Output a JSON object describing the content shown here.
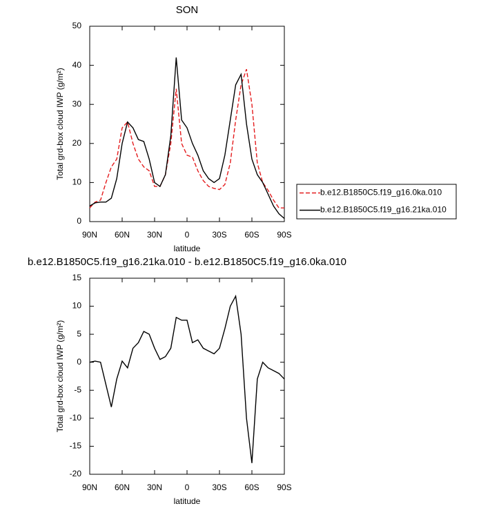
{
  "chart_data": [
    {
      "type": "line",
      "title": "SON",
      "xlabel": "latitude",
      "ylabel": "Total grd-box cloud IWP (g/m²)",
      "x": [
        90,
        85,
        80,
        75,
        70,
        65,
        60,
        55,
        50,
        45,
        40,
        35,
        30,
        25,
        20,
        15,
        10,
        5,
        0,
        -5,
        -10,
        -15,
        -20,
        -25,
        -30,
        -35,
        -40,
        -45,
        -50,
        -55,
        -60,
        -65,
        -70,
        -75,
        -80,
        -85,
        -90
      ],
      "xlim": [
        90,
        -90
      ],
      "xticks": [
        {
          "value": 90,
          "label": "90N"
        },
        {
          "value": 60,
          "label": "60N"
        },
        {
          "value": 30,
          "label": "30N"
        },
        0,
        {
          "value": -30,
          "label": "30S"
        },
        {
          "value": -60,
          "label": "60S"
        },
        {
          "value": -90,
          "label": "90S"
        }
      ],
      "ylim": [
        0,
        50
      ],
      "yticks": [
        0,
        10,
        20,
        30,
        40,
        50
      ],
      "legend": "right",
      "series": [
        {
          "name": "b.e12.B1850C5.f19_g16.0ka.010",
          "color": "#e41a1c",
          "dashed": true,
          "values": [
            3.5,
            5,
            5.5,
            10,
            14,
            16,
            24,
            25.5,
            20,
            16,
            14,
            13,
            9,
            9,
            12,
            20,
            34,
            20,
            17,
            16.5,
            13,
            10.5,
            9,
            8.5,
            8.2,
            9.5,
            15,
            26,
            35,
            39,
            30,
            15,
            10,
            8,
            5.5,
            3.5,
            3.5
          ]
        },
        {
          "name": "b.e12.B1850C5.f19_g16.21ka.010",
          "color": "#000000",
          "dashed": false,
          "values": [
            4,
            4.8,
            5,
            5,
            6,
            11,
            20,
            25.5,
            24,
            21,
            20.5,
            16,
            10,
            9,
            12,
            22,
            42,
            26,
            24,
            20,
            17,
            13,
            11,
            10,
            11,
            17,
            26,
            35,
            37.7,
            25,
            16,
            12,
            10,
            7,
            4,
            2,
            0.8
          ]
        }
      ]
    },
    {
      "type": "line",
      "title": "b.e12.B1850C5.f19_g16.21ka.010 - b.e12.B1850C5.f19_g16.0ka.010",
      "xlabel": "latitude",
      "ylabel": "Total grd-box cloud IWP (g/m²)",
      "x": [
        90,
        85,
        80,
        75,
        70,
        65,
        60,
        55,
        50,
        45,
        40,
        35,
        30,
        25,
        20,
        15,
        10,
        5,
        0,
        -5,
        -10,
        -15,
        -20,
        -25,
        -30,
        -35,
        -40,
        -45,
        -50,
        -55,
        -60,
        -65,
        -70,
        -75,
        -80,
        -85,
        -90
      ],
      "xlim": [
        90,
        -90
      ],
      "xticks": [
        {
          "value": 90,
          "label": "90N"
        },
        {
          "value": 60,
          "label": "60N"
        },
        {
          "value": 30,
          "label": "30N"
        },
        0,
        {
          "value": -30,
          "label": "30S"
        },
        {
          "value": -60,
          "label": "60S"
        },
        {
          "value": -90,
          "label": "90S"
        }
      ],
      "ylim": [
        -20,
        15
      ],
      "yticks": [
        -20,
        -15,
        -10,
        -5,
        0,
        5,
        10,
        15
      ],
      "series": [
        {
          "color": "#000000",
          "dashed": false,
          "values": [
            0,
            0.2,
            0,
            -4,
            -8,
            -3,
            0.2,
            -1,
            2.5,
            3.5,
            5.5,
            5,
            2.5,
            0.5,
            1,
            2.5,
            8,
            7.5,
            7.5,
            3.5,
            4,
            2.5,
            2,
            1.5,
            2.5,
            6,
            10,
            11.8,
            5,
            -10,
            -18,
            -3,
            0,
            -1,
            -1.5,
            -2,
            -3
          ]
        }
      ]
    }
  ]
}
